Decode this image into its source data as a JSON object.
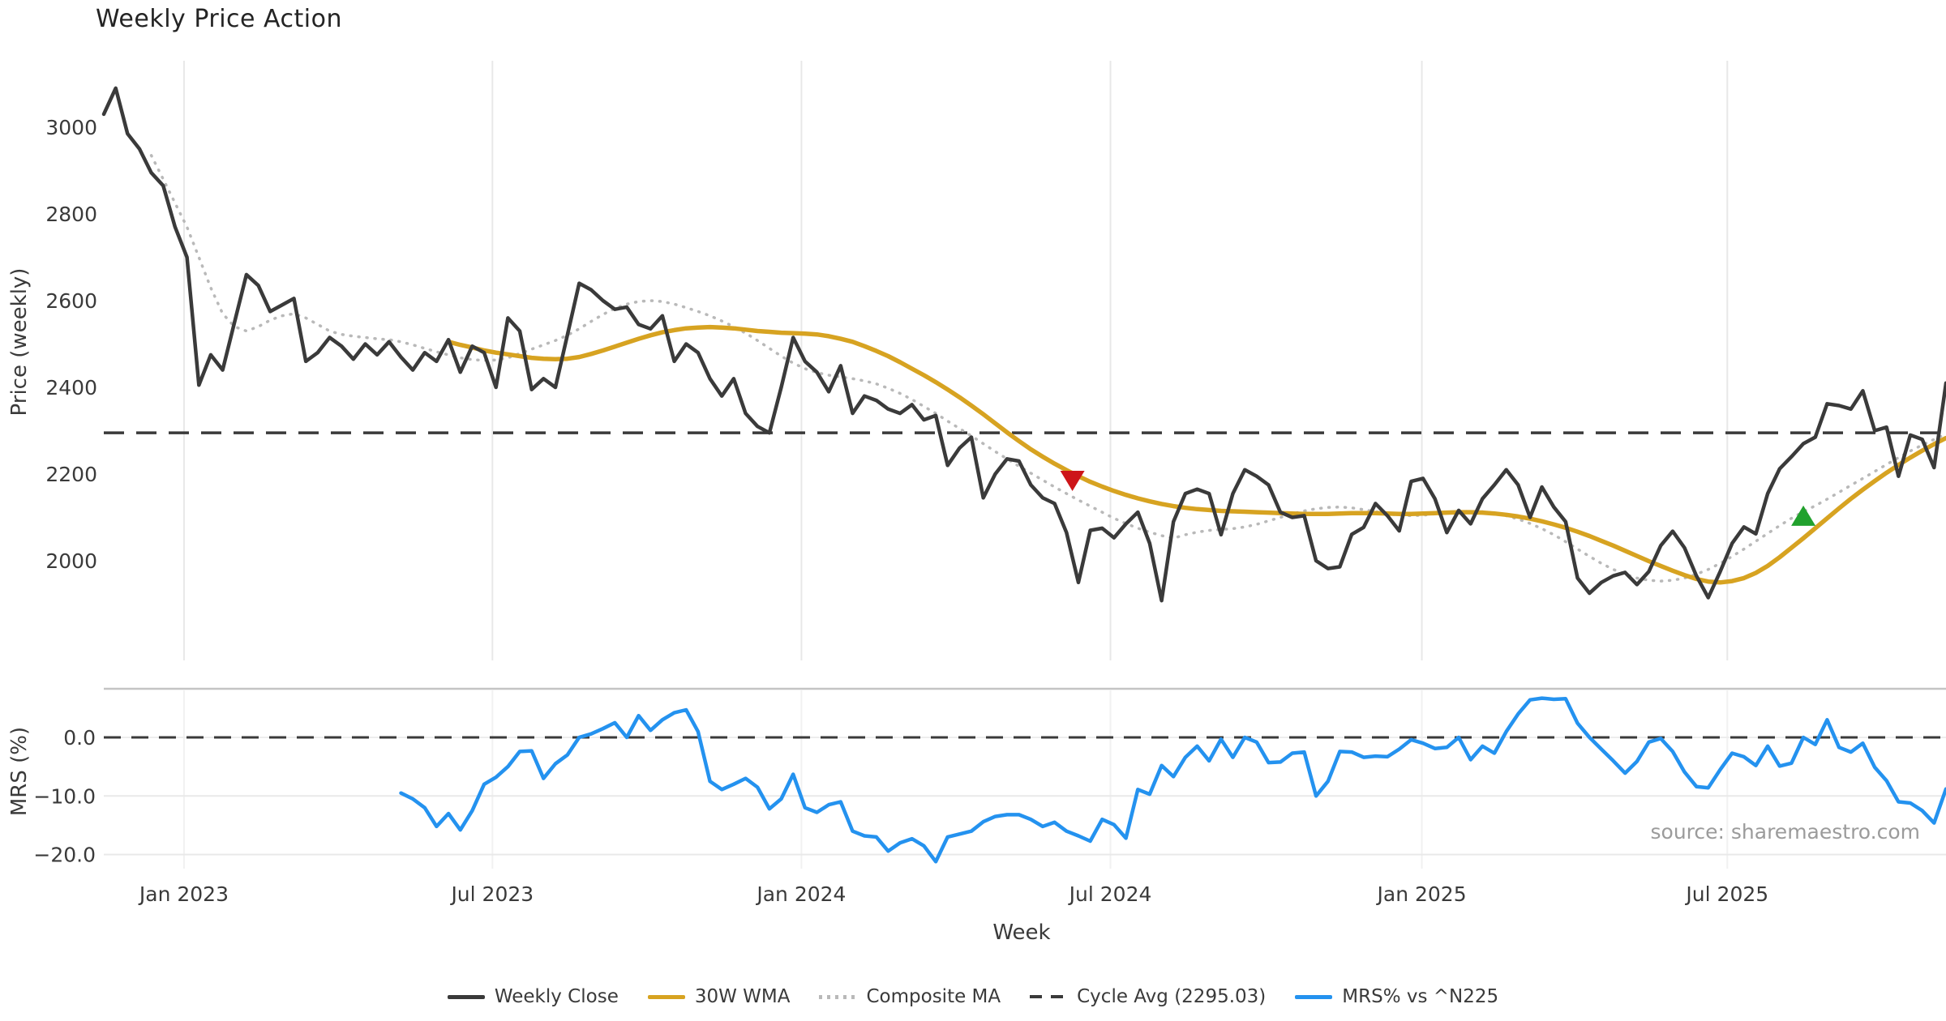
{
  "title": "Weekly Price Action",
  "source_text": "source: sharemaestro.com",
  "axes": {
    "price_label": "Price (weekly)",
    "mrs_label": "MRS (%)",
    "x_label": "Week"
  },
  "colors": {
    "weekly_close": "#3a3a3a",
    "wma": "#d7a321",
    "composite": "#b9b9b9",
    "cycle_avg": "#3a3a3a",
    "mrs": "#2492ef",
    "sell_marker": "#cd1519",
    "buy_marker": "#21a12d",
    "grid": "#e8e8e8",
    "panel_border": "#c4c4c4",
    "tick_text": "#3a3a3a"
  },
  "legend": [
    {
      "label": "Weekly Close",
      "swatch": "solid-dark"
    },
    {
      "label": "30W WMA",
      "swatch": "solid-gold"
    },
    {
      "label": "Composite MA",
      "swatch": "dotted-gray"
    },
    {
      "label": "Cycle Avg (2295.03)",
      "swatch": "dashed-dark"
    },
    {
      "label": "MRS% vs ^N225",
      "swatch": "solid-blue"
    }
  ],
  "chart_data": {
    "type": "line",
    "x_unit": "week_index",
    "n_weeks": 156,
    "x_ticks": [
      {
        "label": "Jan 2023",
        "week": 6.75
      },
      {
        "label": "Jul 2023",
        "week": 32.7
      },
      {
        "label": "Jan 2024",
        "week": 58.7
      },
      {
        "label": "Jul 2024",
        "week": 84.7
      },
      {
        "label": "Jan 2025",
        "week": 110.9
      },
      {
        "label": "Jul 2025",
        "week": 136.6
      }
    ],
    "price_panel": {
      "ylim": [
        1850,
        3160
      ],
      "yticks": [
        3000,
        2800,
        2600,
        2400,
        2200,
        2000
      ],
      "grid": "vertical",
      "cycle_avg": 2295.03,
      "series": [
        {
          "name": "Weekly Close",
          "style": "solid",
          "color_key": "weekly_close",
          "start_week": 0,
          "values": [
            3030,
            3090,
            2985,
            2950,
            2895,
            2865,
            2770,
            2700,
            2405,
            2475,
            2440,
            2550,
            2660,
            2635,
            2575,
            2590,
            2605,
            2460,
            2480,
            2515,
            2495,
            2465,
            2500,
            2475,
            2505,
            2470,
            2440,
            2480,
            2460,
            2510,
            2435,
            2495,
            2480,
            2400,
            2560,
            2530,
            2395,
            2420,
            2400,
            2520,
            2640,
            2625,
            2600,
            2580,
            2585,
            2545,
            2535,
            2565,
            2460,
            2500,
            2480,
            2420,
            2380,
            2420,
            2340,
            2310,
            2295,
            2400,
            2515,
            2460,
            2435,
            2390,
            2450,
            2340,
            2380,
            2370,
            2350,
            2340,
            2360,
            2325,
            2335,
            2220,
            2260,
            2285,
            2145,
            2200,
            2235,
            2230,
            2175,
            2145,
            2132,
            2065,
            1950,
            2070,
            2075,
            2053,
            2085,
            2112,
            2040,
            1908,
            2090,
            2155,
            2165,
            2155,
            2060,
            2155,
            2210,
            2195,
            2175,
            2112,
            2100,
            2104,
            2000,
            1982,
            1986,
            2061,
            2077,
            2132,
            2104,
            2069,
            2183,
            2190,
            2143,
            2065,
            2116,
            2085,
            2143,
            2175,
            2210,
            2175,
            2100,
            2170,
            2124,
            2090,
            1960,
            1925,
            1950,
            1965,
            1973,
            1945,
            1975,
            2035,
            2068,
            2030,
            1965,
            1915,
            1975,
            2040,
            2078,
            2062,
            2155,
            2212,
            2240,
            2270,
            2285,
            2362,
            2358,
            2350,
            2392,
            2300,
            2308,
            2195,
            2290,
            2280,
            2215,
            2410
          ]
        },
        {
          "name": "30W WMA",
          "style": "solid",
          "color_key": "wma",
          "start_week": 29,
          "values": [
            2505,
            2498,
            2492,
            2485,
            2480,
            2476,
            2472,
            2468,
            2466,
            2465,
            2466,
            2470,
            2477,
            2485,
            2494,
            2503,
            2512,
            2520,
            2527,
            2532,
            2536,
            2538,
            2539,
            2538,
            2536,
            2533,
            2530,
            2528,
            2526,
            2525,
            2524,
            2522,
            2518,
            2512,
            2505,
            2495,
            2484,
            2472,
            2458,
            2443,
            2428,
            2412,
            2395,
            2377,
            2358,
            2338,
            2317,
            2296,
            2276,
            2257,
            2240,
            2224,
            2209,
            2195,
            2182,
            2171,
            2161,
            2152,
            2144,
            2137,
            2131,
            2126,
            2122,
            2119,
            2117,
            2115,
            2114,
            2113,
            2112,
            2111,
            2110,
            2109,
            2108,
            2108,
            2108,
            2109,
            2110,
            2110,
            2110,
            2109,
            2108,
            2108,
            2109,
            2110,
            2111,
            2112,
            2112,
            2111,
            2109,
            2106,
            2102,
            2097,
            2091,
            2084,
            2076,
            2067,
            2057,
            2046,
            2035,
            2023,
            2011,
            1999,
            1988,
            1977,
            1967,
            1958,
            1952,
            1950,
            1953,
            1960,
            1972,
            1988,
            2008,
            2030,
            2052,
            2075,
            2098,
            2121,
            2143,
            2164,
            2184,
            2203,
            2221,
            2238,
            2254,
            2269,
            2283
          ]
        },
        {
          "name": "Composite MA",
          "style": "dotted",
          "color_key": "composite",
          "start_week": 4,
          "values": [
            2935,
            2880,
            2825,
            2770,
            2700,
            2630,
            2570,
            2540,
            2530,
            2540,
            2555,
            2565,
            2570,
            2560,
            2545,
            2530,
            2522,
            2518,
            2515,
            2512,
            2510,
            2505,
            2498,
            2490,
            2482,
            2475,
            2468,
            2464,
            2462,
            2463,
            2468,
            2478,
            2488,
            2498,
            2508,
            2520,
            2535,
            2552,
            2568,
            2582,
            2592,
            2598,
            2600,
            2598,
            2592,
            2584,
            2575,
            2565,
            2553,
            2540,
            2525,
            2508,
            2490,
            2472,
            2456,
            2443,
            2434,
            2428,
            2424,
            2420,
            2415,
            2408,
            2398,
            2386,
            2372,
            2356,
            2340,
            2322,
            2305,
            2288,
            2270,
            2252,
            2235,
            2218,
            2202,
            2186,
            2170,
            2155,
            2140,
            2126,
            2112,
            2098,
            2086,
            2075,
            2066,
            2058,
            2052,
            2060,
            2066,
            2070,
            2072,
            2074,
            2078,
            2084,
            2092,
            2100,
            2108,
            2115,
            2120,
            2123,
            2124,
            2122,
            2118,
            2113,
            2108,
            2105,
            2104,
            2105,
            2108,
            2111,
            2113,
            2114,
            2113,
            2110,
            2104,
            2096,
            2086,
            2074,
            2060,
            2044,
            2027,
            2010,
            1994,
            1980,
            1969,
            1960,
            1955,
            1953,
            1955,
            1960,
            1969,
            1980,
            1994,
            2010,
            2027,
            2045,
            2063,
            2081,
            2098,
            2113,
            2127,
            2142,
            2158,
            2174,
            2190,
            2206,
            2222,
            2238,
            2253,
            2267,
            2280,
            2292
          ]
        }
      ],
      "markers": [
        {
          "name": "sell-signal",
          "shape": "triangle-down",
          "color_key": "sell_marker",
          "week": 81.5,
          "value": 2185
        },
        {
          "name": "buy-signal",
          "shape": "triangle-up",
          "color_key": "buy_marker",
          "week": 143,
          "value": 2103
        }
      ]
    },
    "mrs_panel": {
      "ylim": [
        -22.5,
        8.3
      ],
      "yticks": [
        {
          "label": "0.0",
          "value": 0
        },
        {
          "label": "−10.0",
          "value": -10
        },
        {
          "label": "−20.0",
          "value": -20
        }
      ],
      "zero_line": 0,
      "series": [
        {
          "name": "MRS% vs ^N225",
          "style": "solid",
          "color_key": "mrs",
          "start_week": 25,
          "values": [
            -9.5,
            -10.5,
            -12,
            -15.2,
            -13,
            -15.8,
            -12.5,
            -8,
            -6.8,
            -5,
            -2.4,
            -2.3,
            -7,
            -4.5,
            -3,
            0,
            0.6,
            1.5,
            2.5,
            0,
            3.7,
            1.2,
            3,
            4.2,
            4.7,
            1,
            -7.5,
            -8.9,
            -8,
            -7,
            -8.5,
            -12.2,
            -10.5,
            -6.3,
            -12,
            -12.8,
            -11.5,
            -11,
            -16,
            -16.8,
            -17,
            -19.4,
            -18,
            -17.3,
            -18.5,
            -21.2,
            -17,
            -16.5,
            -16,
            -14.4,
            -13.5,
            -13.2,
            -13.2,
            -14,
            -15.2,
            -14.5,
            -16,
            -16.8,
            -17.7,
            -14,
            -14.9,
            -17.2,
            -8.9,
            -9.7,
            -4.8,
            -6.7,
            -3.4,
            -1.5,
            -4,
            -0.3,
            -3.4,
            0,
            -0.8,
            -4.3,
            -4.2,
            -2.7,
            -2.5,
            -10,
            -7.5,
            -2.4,
            -2.5,
            -3.4,
            -3.2,
            -3.3,
            -2,
            -0.4,
            -1,
            -1.9,
            -1.7,
            0,
            -3.8,
            -1.5,
            -2.7,
            1,
            4,
            6.4,
            6.7,
            6.5,
            6.6,
            2.4,
            0,
            -2,
            -4,
            -6.1,
            -4.1,
            -0.8,
            -0.2,
            -2.4,
            -5.9,
            -8.4,
            -8.6,
            -5.5,
            -2.7,
            -3.3,
            -4.8,
            -1.5,
            -4.9,
            -4.4,
            0,
            -1.2,
            3,
            -1.7,
            -2.5,
            -1,
            -5.1,
            -7.4,
            -11,
            -11.2,
            -12.5,
            -14.6,
            -8.8
          ]
        }
      ]
    }
  }
}
